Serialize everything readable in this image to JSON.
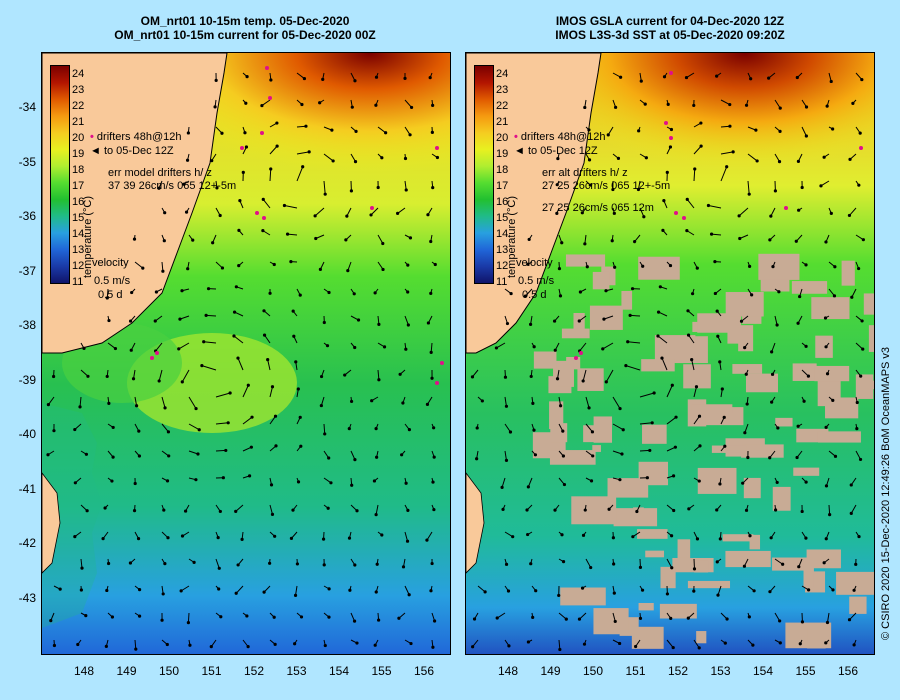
{
  "titles": {
    "left_line1": "OM_nrt01 10-15m temp. 05-Dec-2020",
    "left_line2": "OM_nrt01 10-15m current for 05-Dec-2020 00Z",
    "right_line1": "IMOS GSLA current for 04-Dec-2020 12Z",
    "right_line2": "IMOS L3S-3d SST at 05-Dec-2020 09:20Z"
  },
  "axes": {
    "x_labels": [
      "148",
      "149",
      "150",
      "151",
      "152",
      "153",
      "154",
      "155",
      "156"
    ],
    "y_labels": [
      "-34",
      "-35",
      "-36",
      "-37",
      "-38",
      "-39",
      "-40",
      "-41",
      "-42",
      "-43"
    ]
  },
  "colorbar": {
    "labels": [
      "24",
      "23",
      "22",
      "21",
      "20",
      "19",
      "18",
      "17",
      "16",
      "15",
      "14",
      "13",
      "12",
      "11"
    ],
    "unit": "temperature (°C)",
    "colors": [
      "#7a0000",
      "#b31500",
      "#e05a00",
      "#f59a10",
      "#f5cc20",
      "#e8f020",
      "#b0ee30",
      "#55dd30",
      "#22c030",
      "#20bb88",
      "#28a0e0",
      "#2066d8",
      "#1a3aa8",
      "#10146a"
    ]
  },
  "legend_left": {
    "drifters": "drifters 48h@12h",
    "to_date": "to 05-Dec 12Z",
    "err_title": "err model drifters h/ z",
    "err_values": "37 39 26cm/s 065 12+-5m",
    "velocity": "velocity",
    "scale": "0.5 m/s",
    "scale_time": "0.5 d"
  },
  "legend_right": {
    "drifters": "drifters 48h@12h",
    "to_date": "to 05-Dec 12Z",
    "err_title": "err alt drifters h/ z",
    "err_values": "27 25 26cm/s 065 12+-5m",
    "err_values2": "27 25 26cm/s 065 12m",
    "velocity": "velocity",
    "scale": "0.5 m/s",
    "scale_time": "0.5 d"
  },
  "credit": "© CSIRO 2020   15-Dec-2020 12:49:26 BoM OceanMAPS v3",
  "map_colors": {
    "land": "#f9c99a",
    "coast": "#000000",
    "arrow": "#000000",
    "drifter": "#e0108a",
    "cloud": "#c8ab95"
  }
}
